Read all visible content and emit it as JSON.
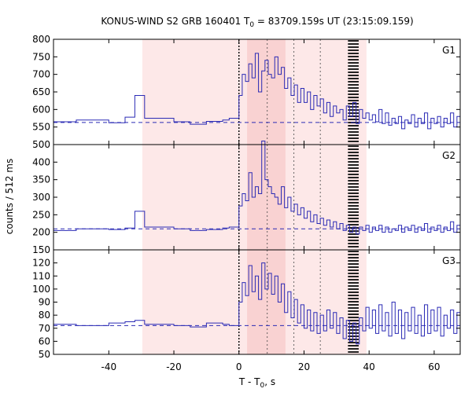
{
  "chart_data": {
    "type": "line",
    "title": "KONUS-WIND S2 GRB 160401 T",
    "title_sub": "0",
    "title_rest": " = 83709.159s UT (23:15:09.159)",
    "xlabel": "T - T",
    "xlabel_sub": "0",
    "xlabel_rest": ", s",
    "ylabel": "counts / 512 ms",
    "xlim": [
      -57,
      68
    ],
    "x_ticks": [
      -40,
      -20,
      0,
      20,
      40,
      60
    ],
    "shaded_region": {
      "from": -29.7,
      "to": 39.2,
      "color": "#fde8e8"
    },
    "shaded_core": {
      "from": 2.5,
      "to": 14.3,
      "color": "#f9d2d2"
    },
    "dotted_lines": [
      0,
      8.7,
      16.9,
      25.0
    ],
    "marked_band": {
      "from": 33.5,
      "to": 36.8
    },
    "colors": {
      "line": "#2b2bb5",
      "background_line": "#2b2bb5"
    },
    "panels": [
      {
        "name": "G1",
        "ylim": [
          500,
          800
        ],
        "yticks": [
          500,
          550,
          600,
          650,
          700,
          750,
          800
        ],
        "background": 563,
        "x": [
          -57,
          -50,
          -40,
          -35,
          -32,
          -29,
          -20,
          -15,
          -10,
          -5,
          -3,
          0,
          1,
          2,
          3,
          4,
          5,
          6,
          7,
          8,
          9,
          10,
          11,
          12,
          13,
          14,
          15,
          16,
          17,
          18,
          19,
          20,
          21,
          22,
          23,
          24,
          25,
          26,
          27,
          28,
          29,
          30,
          31,
          32,
          33,
          34,
          35,
          36,
          37,
          38,
          39,
          40,
          41,
          42,
          43,
          44,
          45,
          46,
          47,
          48,
          49,
          50,
          51,
          52,
          53,
          54,
          55,
          56,
          57,
          58,
          59,
          60,
          61,
          62,
          63,
          64,
          65,
          66,
          67,
          68
        ],
        "y": [
          565,
          570,
          562,
          578,
          640,
          575,
          565,
          558,
          566,
          570,
          575,
          640,
          700,
          680,
          730,
          690,
          760,
          650,
          710,
          740,
          700,
          690,
          750,
          700,
          720,
          660,
          690,
          640,
          670,
          620,
          660,
          620,
          650,
          600,
          640,
          610,
          630,
          590,
          620,
          580,
          610,
          590,
          600,
          570,
          610,
          580,
          620,
          560,
          600,
          575,
          590,
          570,
          585,
          565,
          600,
          560,
          590,
          555,
          575,
          560,
          580,
          545,
          570,
          560,
          585,
          550,
          575,
          560,
          590,
          545,
          575,
          560,
          580,
          550,
          575,
          560,
          590,
          550,
          580,
          575
        ]
      },
      {
        "name": "G2",
        "ylim": [
          150,
          450
        ],
        "yticks": [
          150,
          200,
          250,
          300,
          350,
          400,
          450
        ],
        "background": 210,
        "x": [
          -57,
          -50,
          -40,
          -35,
          -32,
          -29,
          -20,
          -15,
          -10,
          -5,
          -3,
          0,
          1,
          2,
          3,
          4,
          5,
          6,
          7,
          8,
          9,
          10,
          11,
          12,
          13,
          14,
          15,
          16,
          17,
          18,
          19,
          20,
          21,
          22,
          23,
          24,
          25,
          26,
          27,
          28,
          29,
          30,
          31,
          32,
          33,
          34,
          35,
          36,
          37,
          38,
          39,
          40,
          41,
          42,
          43,
          44,
          45,
          46,
          47,
          48,
          49,
          50,
          51,
          52,
          53,
          54,
          55,
          56,
          57,
          58,
          59,
          60,
          61,
          62,
          63,
          64,
          65,
          66,
          67,
          68
        ],
        "y": [
          205,
          210,
          208,
          212,
          260,
          215,
          210,
          205,
          208,
          212,
          215,
          275,
          310,
          290,
          370,
          300,
          330,
          310,
          460,
          350,
          330,
          310,
          300,
          280,
          330,
          270,
          300,
          260,
          280,
          250,
          270,
          240,
          260,
          230,
          250,
          225,
          240,
          220,
          235,
          215,
          230,
          210,
          225,
          205,
          220,
          200,
          215,
          195,
          215,
          205,
          220,
          200,
          215,
          205,
          220,
          200,
          215,
          200,
          210,
          205,
          220,
          200,
          215,
          205,
          220,
          200,
          215,
          205,
          225,
          200,
          215,
          205,
          220,
          200,
          215,
          205,
          230,
          200,
          220,
          215
        ]
      },
      {
        "name": "G3",
        "ylim": [
          50,
          130
        ],
        "yticks": [
          50,
          60,
          70,
          80,
          90,
          100,
          110,
          120
        ],
        "background": 72,
        "x": [
          -57,
          -50,
          -40,
          -35,
          -32,
          -29,
          -20,
          -15,
          -10,
          -5,
          -3,
          0,
          1,
          2,
          3,
          4,
          5,
          6,
          7,
          8,
          9,
          10,
          11,
          12,
          13,
          14,
          15,
          16,
          17,
          18,
          19,
          20,
          21,
          22,
          23,
          24,
          25,
          26,
          27,
          28,
          29,
          30,
          31,
          32,
          33,
          34,
          35,
          36,
          37,
          38,
          39,
          40,
          41,
          42,
          43,
          44,
          45,
          46,
          47,
          48,
          49,
          50,
          51,
          52,
          53,
          54,
          55,
          56,
          57,
          58,
          59,
          60,
          61,
          62,
          63,
          64,
          65,
          66,
          67,
          68
        ],
        "y": [
          73,
          72,
          74,
          75,
          76,
          73,
          72,
          71,
          74,
          73,
          72,
          90,
          105,
          95,
          118,
          98,
          110,
          92,
          120,
          100,
          112,
          96,
          110,
          90,
          104,
          82,
          98,
          78,
          92,
          74,
          88,
          70,
          84,
          68,
          82,
          66,
          80,
          68,
          84,
          70,
          82,
          66,
          78,
          62,
          76,
          60,
          74,
          58,
          78,
          68,
          86,
          70,
          84,
          66,
          88,
          68,
          82,
          64,
          90,
          66,
          84,
          62,
          82,
          68,
          86,
          66,
          80,
          64,
          88,
          66,
          84,
          68,
          86,
          64,
          80,
          70,
          84,
          66,
          82,
          74
        ]
      }
    ]
  }
}
